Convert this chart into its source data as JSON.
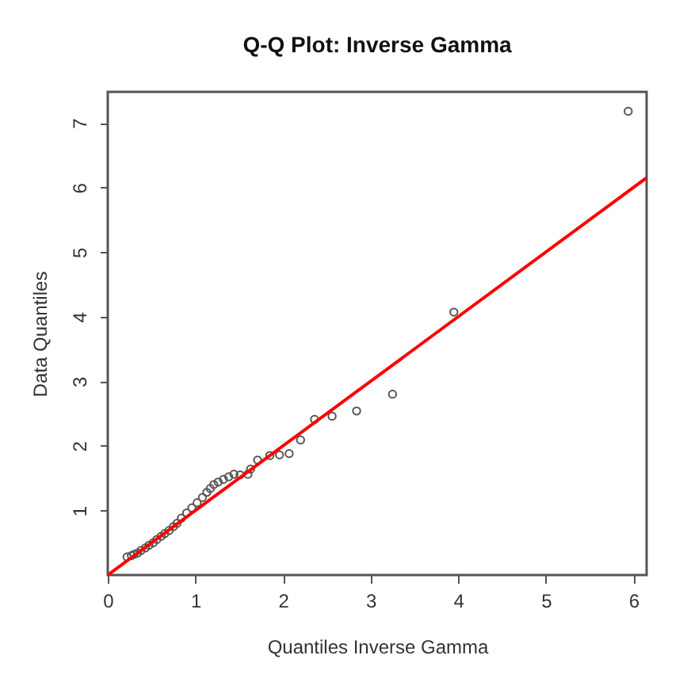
{
  "chart_data": {
    "type": "scatter",
    "title": "Q-Q Plot: Inverse Gamma",
    "xlabel": "Quantiles Inverse Gamma",
    "ylabel": "Data Quantiles",
    "xlim": [
      0,
      6.15
    ],
    "ylim": [
      0,
      7.48
    ],
    "xticks": [
      0,
      1,
      2,
      3,
      4,
      5,
      6
    ],
    "yticks": [
      1,
      2,
      3,
      4,
      5,
      6,
      7
    ],
    "grid": false,
    "series": [
      {
        "marker": "circle",
        "color": "#555555",
        "x": [
          0.22,
          0.27,
          0.3,
          0.34,
          0.38,
          0.43,
          0.47,
          0.52,
          0.56,
          0.61,
          0.65,
          0.7,
          0.75,
          0.79,
          0.84,
          0.9,
          0.96,
          1.02,
          1.08,
          1.13,
          1.17,
          1.21,
          1.26,
          1.32,
          1.38,
          1.44,
          1.51,
          1.6,
          1.63,
          1.71,
          1.85,
          1.96,
          2.07,
          2.2,
          2.36,
          2.56,
          2.84,
          3.25,
          3.95,
          5.94
        ],
        "values": [
          0.28,
          0.3,
          0.32,
          0.34,
          0.38,
          0.42,
          0.46,
          0.5,
          0.55,
          0.6,
          0.64,
          0.69,
          0.75,
          0.8,
          0.88,
          0.96,
          1.04,
          1.12,
          1.2,
          1.28,
          1.34,
          1.4,
          1.44,
          1.48,
          1.52,
          1.56,
          1.55,
          1.56,
          1.64,
          1.78,
          1.85,
          1.86,
          1.88,
          2.09,
          2.41,
          2.46,
          2.54,
          2.8,
          4.07,
          7.18
        ]
      },
      {
        "type": "line",
        "color": "#ff0000",
        "line_style": "solid",
        "x": [
          0,
          6.15
        ],
        "values": [
          0,
          6.15
        ]
      }
    ]
  }
}
